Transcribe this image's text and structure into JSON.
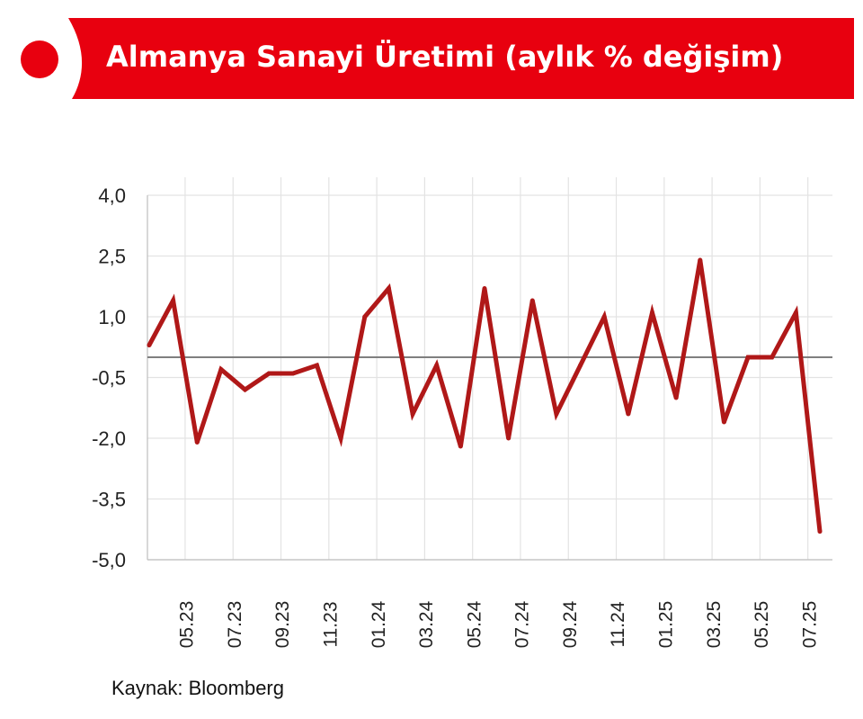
{
  "header": {
    "title": "Almanya Sanayi Üretimi (aylık % değişim)"
  },
  "source": "Kaynak: Bloomberg",
  "colors": {
    "brand_red": "#e8000f",
    "line": "#b01818",
    "zero_line": "#7f7f7f",
    "grid": "#e3e3e3"
  },
  "chart_data": {
    "type": "line",
    "title": "Almanya Sanayi Üretimi (aylık % değişim)",
    "xlabel": "",
    "ylabel": "",
    "ylim": [
      -5.0,
      4.0
    ],
    "yticks": [
      4.0,
      2.5,
      1.0,
      -0.5,
      -2.0,
      -3.5,
      -5.0
    ],
    "ytick_labels": [
      "4,0",
      "2,5",
      "1,0",
      "-0,5",
      "-2,0",
      "-3,5",
      "-5,0"
    ],
    "x": [
      "04.23",
      "05.23",
      "06.23",
      "07.23",
      "08.23",
      "09.23",
      "10.23",
      "11.23",
      "12.23",
      "01.24",
      "02.24",
      "03.24",
      "04.24",
      "05.24",
      "06.24",
      "07.24",
      "08.24",
      "09.24",
      "10.24",
      "11.24",
      "12.24",
      "01.25",
      "02.25",
      "03.25",
      "04.25",
      "05.25",
      "06.25",
      "07.25",
      "08.25"
    ],
    "xtick_labels": [
      "05.23",
      "07.23",
      "09.23",
      "11.23",
      "01.24",
      "03.24",
      "05.24",
      "07.24",
      "09.24",
      "11.24",
      "01.25",
      "03.25",
      "05.25",
      "07.25"
    ],
    "reference_line": 0.0,
    "grid": "vertical and horizontal",
    "legend": "none",
    "series": [
      {
        "values": [
          0.3,
          1.4,
          -2.1,
          -0.3,
          -0.8,
          -0.4,
          -0.4,
          -0.2,
          -2.0,
          1.0,
          1.7,
          -1.4,
          -0.2,
          -2.2,
          1.7,
          -2.0,
          1.4,
          -1.4,
          -0.2,
          1.0,
          -1.4,
          1.1,
          -1.0,
          2.4,
          -1.6,
          0.0,
          0.0,
          1.1,
          -4.3
        ]
      }
    ]
  }
}
